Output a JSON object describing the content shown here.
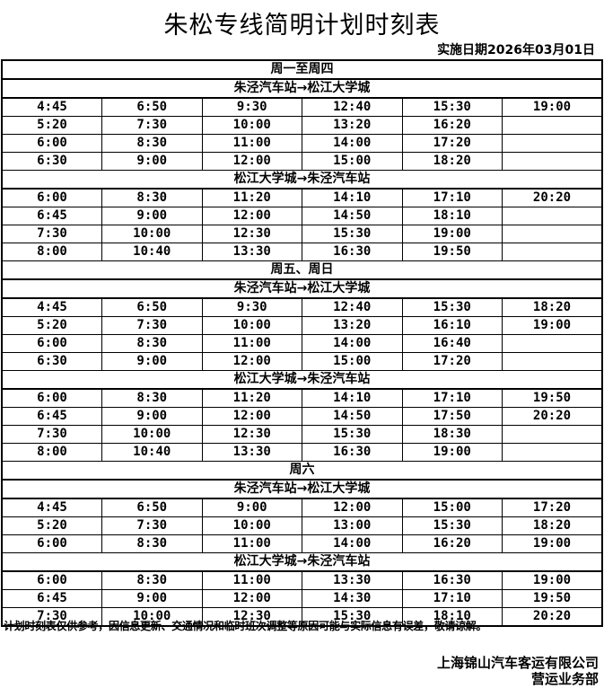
{
  "title": "朱松专线简明计划时刻表",
  "effective_date": "实施日期2026年03月01日",
  "sections": [
    {
      "label": "周一至周四",
      "directions": [
        {
          "label": "朱泾汽车站→松江大学城",
          "rows": [
            [
              "4:45",
              "6:50",
              "9:30",
              "12:40",
              "15:30",
              "19:00"
            ],
            [
              "5:20",
              "7:30",
              "10:00",
              "13:20",
              "16:20",
              ""
            ],
            [
              "6:00",
              "8:30",
              "11:00",
              "14:00",
              "17:20",
              ""
            ],
            [
              "6:30",
              "9:00",
              "12:00",
              "15:00",
              "18:20",
              ""
            ]
          ]
        },
        {
          "label": "松江大学城→朱泾汽车站",
          "rows": [
            [
              "6:00",
              "8:30",
              "11:20",
              "14:10",
              "17:10",
              "20:20"
            ],
            [
              "6:45",
              "9:00",
              "12:00",
              "14:50",
              "18:10",
              ""
            ],
            [
              "7:30",
              "10:00",
              "12:30",
              "15:30",
              "19:00",
              ""
            ],
            [
              "8:00",
              "10:40",
              "13:30",
              "16:30",
              "19:50",
              ""
            ]
          ]
        }
      ]
    },
    {
      "label": "周五、周日",
      "directions": [
        {
          "label": "朱泾汽车站→松江大学城",
          "rows": [
            [
              "4:45",
              "6:50",
              "9:30",
              "12:40",
              "15:30",
              "18:20"
            ],
            [
              "5:20",
              "7:30",
              "10:00",
              "13:20",
              "16:10",
              "19:00"
            ],
            [
              "6:00",
              "8:30",
              "11:00",
              "14:00",
              "16:40",
              ""
            ],
            [
              "6:30",
              "9:00",
              "12:00",
              "15:00",
              "17:20",
              ""
            ]
          ]
        },
        {
          "label": "松江大学城→朱泾汽车站",
          "rows": [
            [
              "6:00",
              "8:30",
              "11:20",
              "14:10",
              "17:10",
              "19:50"
            ],
            [
              "6:45",
              "9:00",
              "12:00",
              "14:50",
              "17:50",
              "20:20"
            ],
            [
              "7:30",
              "10:00",
              "12:30",
              "15:30",
              "18:30",
              ""
            ],
            [
              "8:00",
              "10:40",
              "13:30",
              "16:30",
              "19:00",
              ""
            ]
          ]
        }
      ]
    },
    {
      "label": "周六",
      "directions": [
        {
          "label": "朱泾汽车站→松江大学城",
          "rows": [
            [
              "4:45",
              "6:50",
              "9:00",
              "12:00",
              "15:00",
              "17:20"
            ],
            [
              "5:20",
              "7:30",
              "10:00",
              "13:00",
              "15:30",
              "18:20"
            ],
            [
              "6:00",
              "8:30",
              "11:00",
              "14:00",
              "16:20",
              "19:00"
            ]
          ]
        },
        {
          "label": "松江大学城→朱泾汽车站",
          "rows": [
            [
              "6:00",
              "8:30",
              "11:00",
              "13:30",
              "16:30",
              "19:00"
            ],
            [
              "6:45",
              "9:00",
              "12:00",
              "14:30",
              "17:10",
              "19:50"
            ],
            [
              "7:30",
              "10:00",
              "12:30",
              "15:30",
              "18:10",
              "20:20"
            ]
          ]
        }
      ]
    }
  ],
  "note": "计划时刻表仅供参考，因信息更新、交通情况和临时班次调整等原因可能与实际信息有误差，敬请谅解。",
  "company": "上海锦山汽车客运有限公司",
  "department": "营运业务部"
}
